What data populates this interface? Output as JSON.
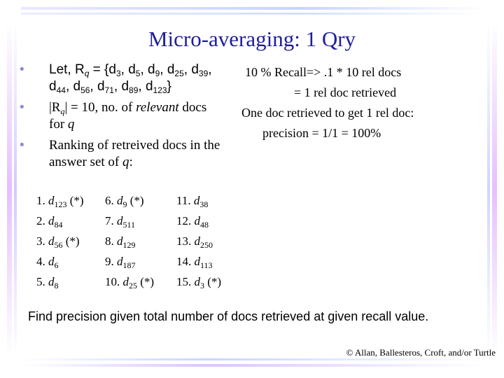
{
  "title": "Micro-averaging: 1 Qry",
  "bullets": {
    "b1": {
      "a": "Let, R",
      "q": "q",
      "b": " = {d",
      "s1": "3",
      "c": ", d",
      "s2": "5",
      "d": ", d",
      "s3": "9",
      "e": ", d",
      "s4": "25",
      "f": ", d",
      "s5": "39",
      "g": ",",
      "h": "d",
      "s6": "44",
      "i": ", d",
      "s7": "56",
      "j": ", d",
      "s8": "71",
      "k": ", d",
      "s9": "89",
      "l": ", d",
      "s10": "123",
      "m": "}"
    },
    "b2": {
      "a": "|R",
      "q": "q",
      "b": "| = 10, no. of ",
      "rel": "relevant",
      "c": " docs",
      "d": "for ",
      "qv": "q"
    },
    "b3": {
      "a": "Ranking of retreived docs in the",
      "b": "answer set of ",
      "qv": "q",
      "c": ":"
    }
  },
  "bullet_glyph": "•",
  "note": {
    "line1": "10 % Recall=> .1 * 10 rel docs",
    "line2": "= 1 rel doc retrieved",
    "line3": "One doc retrieved to get 1 rel doc:",
    "line4": "precision = 1/1 = 100%"
  },
  "ranking": {
    "col1": [
      {
        "n": "1. ",
        "d": "d",
        "s": "123",
        "m": " (*)"
      },
      {
        "n": "2. ",
        "d": "d",
        "s": "84",
        "m": ""
      },
      {
        "n": "3. ",
        "d": "d",
        "s": "56",
        "m": " (*)"
      },
      {
        "n": "4. ",
        "d": "d",
        "s": "6",
        "m": ""
      },
      {
        "n": "5. ",
        "d": "d",
        "s": "8",
        "m": ""
      }
    ],
    "col2": [
      {
        "n": "6. ",
        "d": "d",
        "s": "9",
        "m": " (*)"
      },
      {
        "n": "7. ",
        "d": "d",
        "s": "511",
        "m": ""
      },
      {
        "n": "8. ",
        "d": "d",
        "s": "129",
        "m": ""
      },
      {
        "n": "9. ",
        "d": "d",
        "s": "187",
        "m": ""
      },
      {
        "n": "10. ",
        "d": "d",
        "s": "25",
        "m": " (*)"
      }
    ],
    "col3": [
      {
        "n": "11. ",
        "d": "d",
        "s": "38",
        "m": ""
      },
      {
        "n": "12. ",
        "d": "d",
        "s": "48",
        "m": ""
      },
      {
        "n": "13. ",
        "d": "d",
        "s": "250",
        "m": ""
      },
      {
        "n": "14. ",
        "d": "d",
        "s": "113",
        "m": ""
      },
      {
        "n": "15. ",
        "d": "d",
        "s": "3",
        "m": " (*)"
      }
    ]
  },
  "footer_question": "Find precision given total number of docs retrieved at given recall value.",
  "copyright": "© Allan, Ballesteros, Croft, and/or Turtle",
  "colors": {
    "title": "#1f1f99",
    "bullet": "#8c8cd9"
  }
}
